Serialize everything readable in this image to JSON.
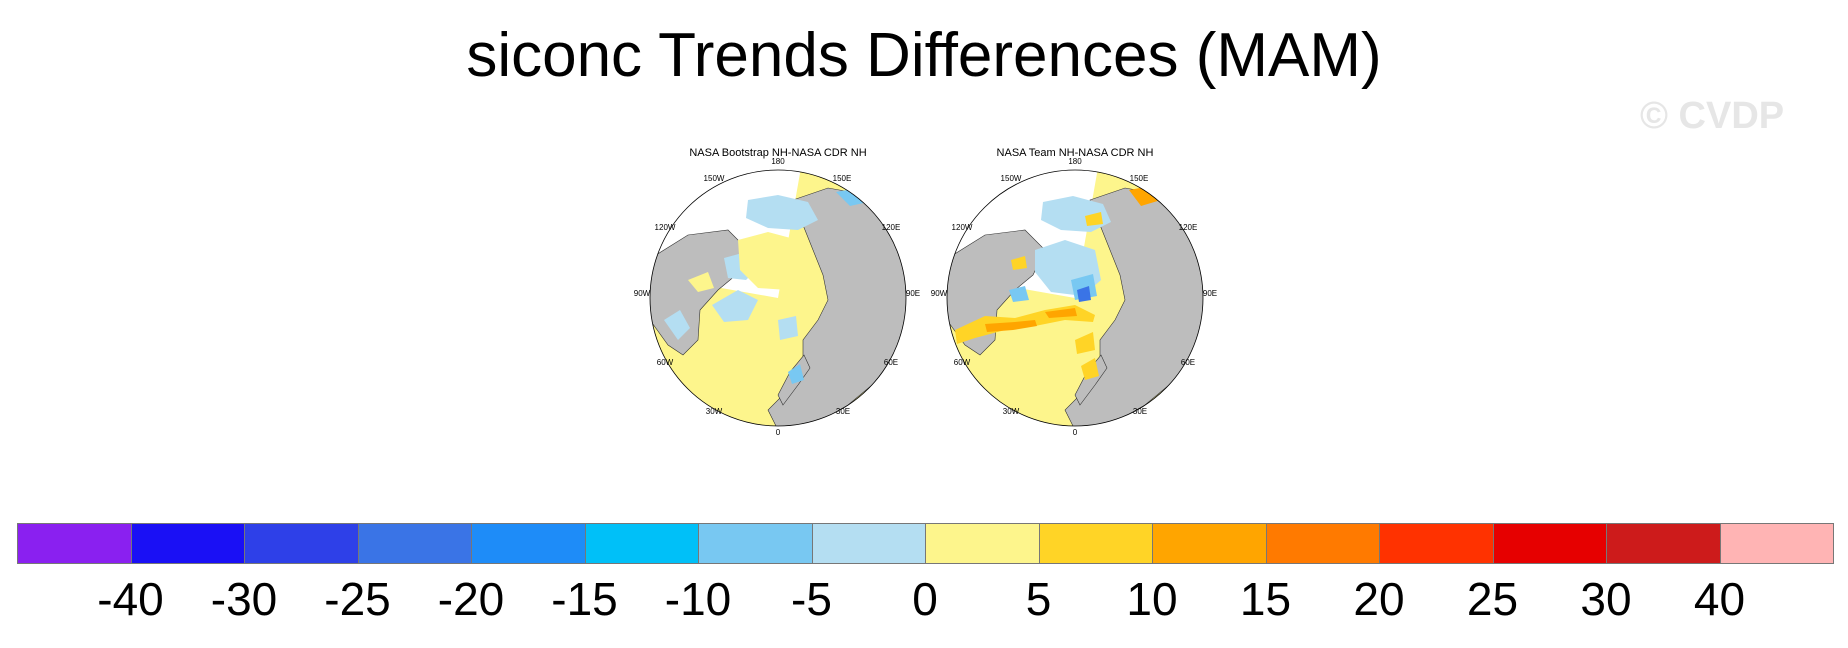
{
  "title": "siconc Trends Differences (MAM)",
  "watermark": "© CVDP",
  "panels": [
    {
      "title": "NASA Bootstrap NH-NASA CDR NH",
      "lon_labels": [
        "180",
        "150E",
        "120E",
        "90E",
        "60E",
        "30E",
        "0",
        "30W",
        "60W",
        "90W",
        "120W",
        "150W"
      ]
    },
    {
      "title": "NASA Team NH-NASA CDR NH",
      "lon_labels": [
        "180",
        "150E",
        "120E",
        "90E",
        "60E",
        "30E",
        "0",
        "30W",
        "60W",
        "90W",
        "120W",
        "150W"
      ]
    }
  ],
  "colorbar": {
    "tick_labels": [
      "-40",
      "-30",
      "-25",
      "-20",
      "-15",
      "-10",
      "-5",
      "0",
      "5",
      "10",
      "15",
      "20",
      "25",
      "30",
      "40"
    ],
    "colors": [
      "#8a20f0",
      "#1a10f5",
      "#2e40e8",
      "#3a74e6",
      "#1e8cf8",
      "#00c0f8",
      "#78c8f2",
      "#b4def2",
      "#fdf58c",
      "#ffd426",
      "#ffa500",
      "#ff7a00",
      "#ff3200",
      "#e60000",
      "#cd1b1b",
      "#ffb4b4"
    ]
  },
  "colors": {
    "land": "#bdbdbd",
    "ocean_mask": "#ffffff",
    "trend_pos_small": "#fdf58c",
    "trend_neg_small": "#b4def2"
  }
}
